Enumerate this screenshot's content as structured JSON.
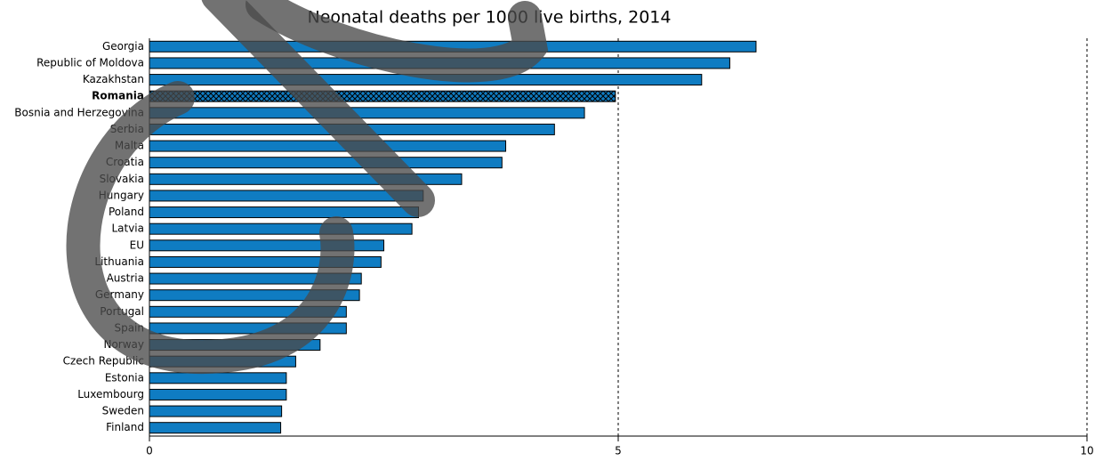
{
  "chart_data": {
    "type": "hbar",
    "title": "Neonatal deaths per 1000 live births, 2014",
    "categories": [
      "Georgia",
      "Republic of Moldova",
      "Kazakhstan",
      "Romania",
      "Bosnia and Herzegovina",
      "Serbia",
      "Malta",
      "Croatia",
      "Slovakia",
      "Hungary",
      "Poland",
      "Latvia",
      "EU",
      "Lithuania",
      "Austria",
      "Germany",
      "Portugal",
      "Spain",
      "Norway",
      "Czech Republic",
      "Estonia",
      "Luxembourg",
      "Sweden",
      "Finland"
    ],
    "values": [
      6.47,
      6.19,
      5.89,
      4.97,
      4.64,
      4.32,
      3.8,
      3.76,
      3.33,
      2.92,
      2.87,
      2.8,
      2.5,
      2.47,
      2.26,
      2.24,
      2.1,
      2.1,
      1.82,
      1.56,
      1.46,
      1.46,
      1.41,
      1.4
    ],
    "color": "#0f7cc2",
    "highlight": "Romania",
    "xlim": [
      0,
      10
    ],
    "xticks": [
      0,
      5,
      10
    ],
    "grid": true
  }
}
